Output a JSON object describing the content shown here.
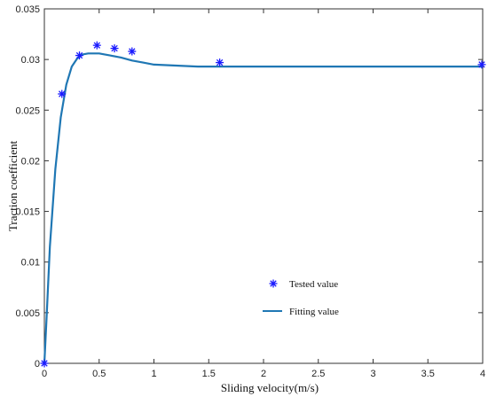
{
  "chart_data": {
    "type": "line",
    "xlabel": "Sliding velocity(m/s)",
    "ylabel": "Traction coefficient",
    "xlim": [
      0,
      4
    ],
    "ylim": [
      0,
      0.035
    ],
    "x_ticks": [
      "0",
      "0.5",
      "1",
      "1.5",
      "2",
      "2.5",
      "3",
      "3.5",
      "4"
    ],
    "y_ticks": [
      "0",
      "0.005",
      "0.01",
      "0.015",
      "0.02",
      "0.025",
      "0.03",
      "0.035"
    ],
    "grid": false,
    "legend_position": "lower-center",
    "series": [
      {
        "name": "Tested value",
        "style": "markers",
        "marker": "asterisk",
        "color": "#1a1aff",
        "x": [
          0,
          0.16,
          0.32,
          0.48,
          0.64,
          0.8,
          1.6,
          4.0
        ],
        "y": [
          0.0,
          0.0266,
          0.0304,
          0.0314,
          0.0311,
          0.0308,
          0.0297,
          0.0295
        ]
      },
      {
        "name": "Fitting value",
        "style": "line",
        "color": "#1f77b4",
        "x": [
          0,
          0.02,
          0.05,
          0.1,
          0.15,
          0.2,
          0.25,
          0.3,
          0.35,
          0.4,
          0.45,
          0.5,
          0.55,
          0.6,
          0.7,
          0.8,
          0.9,
          1.0,
          1.2,
          1.4,
          1.6,
          2.0,
          2.5,
          3.0,
          3.5,
          4.0
        ],
        "y": [
          0.0,
          0.0045,
          0.0115,
          0.0192,
          0.0243,
          0.0275,
          0.0293,
          0.0301,
          0.0305,
          0.0306,
          0.0306,
          0.0306,
          0.0305,
          0.0304,
          0.0302,
          0.0299,
          0.0297,
          0.0295,
          0.0294,
          0.0293,
          0.0293,
          0.0293,
          0.0293,
          0.0293,
          0.0293,
          0.0293
        ]
      }
    ]
  }
}
